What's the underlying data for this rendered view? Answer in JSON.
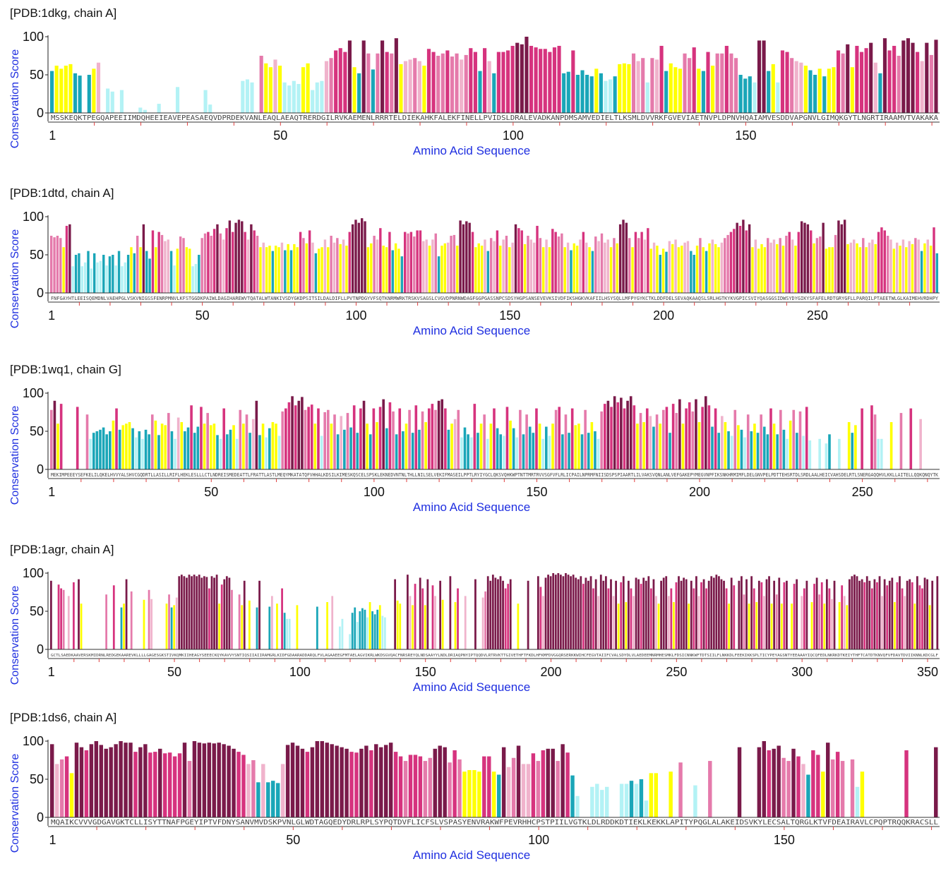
{
  "colors": {
    "maroon": "#7a1a4a",
    "magenta": "#d6337e",
    "pink": "#e57aab",
    "lightpink": "#f0b3cc",
    "yellow": "#ffff00",
    "teal": "#1aa6b8",
    "lightcyan": "#b3f2f5",
    "axis_label": "#1f2fe0"
  },
  "chart_data": [
    {
      "type": "bar",
      "title": "[PDB:1dkg, chain A]",
      "xlabel": "Amino Acid Sequence",
      "ylabel": "Conservation Score",
      "ylim": [
        0,
        100
      ],
      "yticks": [
        0,
        50,
        100
      ],
      "xticks": [
        1,
        50,
        100,
        150
      ],
      "sequence": "MSSKEQKTPEGQAPEEIIMDQHEEIEAVEPEASAEQVDPRDEKVANLEAQLAEAQTRERDGILRVKAEMENLRRRTELDIEKAHKFALEKFINELLPVIDSLDRALEVADKANPDMSAMVEDIELTLKSMLDVVRKFGVEVIAETNVPLDPNVHQAIAMVESDDVAPGNVLGIMQKGYTLNGRTIRAAMVTVAKAKA",
      "scores": [
        55,
        62,
        58,
        62,
        64,
        52,
        49,
        0,
        50,
        58,
        66,
        0,
        32,
        28,
        0,
        30,
        0,
        0,
        0,
        7,
        4,
        0,
        0,
        12,
        0,
        0,
        0,
        34,
        0,
        0,
        0,
        0,
        0,
        30,
        11,
        0,
        0,
        0,
        0,
        0,
        0,
        42,
        44,
        40,
        0,
        75,
        65,
        60,
        70,
        62,
        40,
        36,
        42,
        38,
        60,
        65,
        30,
        40,
        42,
        68,
        72,
        82,
        85,
        80,
        95,
        60,
        52,
        95,
        78,
        57,
        78,
        95,
        80,
        78,
        98,
        64,
        68,
        70,
        72,
        68,
        62,
        84,
        80,
        75,
        78,
        82,
        74,
        78,
        70,
        76,
        85,
        80,
        55,
        85,
        68,
        52,
        80,
        80,
        82,
        88,
        92,
        90,
        100,
        88,
        86,
        84,
        84,
        80,
        86,
        88,
        52,
        54,
        82,
        50,
        56,
        50,
        48,
        58,
        52,
        42,
        44,
        48,
        64,
        65,
        64,
        78,
        68,
        72,
        40,
        72,
        70,
        88,
        55,
        65,
        60,
        58,
        78,
        72,
        86,
        58,
        55,
        80,
        62,
        78,
        78,
        88,
        78,
        72,
        50,
        45,
        48,
        40,
        95,
        95,
        55,
        64,
        40,
        82,
        80,
        72,
        68,
        66,
        62,
        56,
        50,
        58,
        48,
        58,
        60,
        82,
        78,
        90,
        60,
        88,
        80,
        85,
        92,
        66,
        52,
        98,
        82,
        88,
        75,
        95,
        98,
        92,
        80,
        68,
        92,
        76,
        96
      ]
    },
    {
      "type": "bar",
      "title": "[PDB:1dtd, chain A]",
      "xlabel": "Amino Acid Sequence",
      "ylabel": "Conservation Score",
      "ylim": [
        0,
        100
      ],
      "yticks": [
        0,
        50,
        100
      ],
      "xticks": [
        1,
        50,
        100,
        150,
        200,
        250,
        300
      ],
      "sequence": "FNFGAYHTLEEISQEMDNLVAEHPGLVSKVNIGSSFENRPMNVLKFSTGGDKPAIWLDAGIHAREWVTQATALWTANKIVSDYGKDPSITSILDALDIFLLPVTNPDGYVFSQTKNRMWRKTRSKVSAGSLCVGVDPNRNWDAGFGGPGASSNPCSDSYHGPSANSEVEVKSIVDFIKSHGKVKAFIILHSYSQLLMFPYGYKCTKLDDFDELSEVAQKAAQSLSRLHGTKYKVGPICSVIYQASGGSIDWSYDYGIKYSFAFELRDTGRYGFLLPARQILPTAEETWLGLKAIMEHVRDHPY",
      "scores": [
        75,
        73,
        75,
        72,
        60,
        88,
        90,
        35,
        50,
        52,
        35,
        40,
        55,
        32,
        52,
        40,
        42,
        50,
        36,
        48,
        50,
        36,
        55,
        35,
        40,
        50,
        60,
        52,
        75,
        60,
        90,
        55,
        45,
        82,
        60,
        80,
        76,
        68,
        70,
        55,
        36,
        58,
        74,
        72,
        60,
        58,
        35,
        38,
        50,
        72,
        78,
        80,
        75,
        84,
        90,
        78,
        70,
        85,
        95,
        80,
        92,
        96,
        94,
        80,
        70,
        90,
        82,
        75,
        60,
        66,
        60,
        62,
        55,
        62,
        60,
        66,
        56,
        64,
        56,
        64,
        60,
        80,
        72,
        65,
        82,
        66,
        52,
        58,
        60,
        70,
        60,
        75,
        66,
        72,
        64,
        70,
        62,
        80,
        90,
        96,
        92,
        98,
        94,
        60,
        65,
        75,
        70,
        85,
        62,
        60,
        80,
        56,
        65,
        58,
        48,
        80,
        78,
        80,
        74,
        82,
        82,
        68,
        70,
        62,
        70,
        78,
        48,
        62,
        65,
        66,
        75,
        76,
        62,
        95,
        90,
        94,
        92,
        80,
        60,
        65,
        62,
        70,
        55,
        72,
        68,
        82,
        62,
        70,
        75,
        60,
        66,
        90,
        85,
        82,
        64,
        75,
        70,
        66,
        88,
        72,
        60,
        70,
        60,
        84,
        80,
        74,
        78,
        60,
        66,
        56,
        65,
        62,
        70,
        80,
        66,
        60,
        55,
        74,
        68,
        78,
        66,
        70,
        60,
        72,
        65,
        90,
        96,
        92,
        72,
        60,
        80,
        72,
        80,
        70,
        85,
        58,
        66,
        62,
        50,
        58,
        54,
        68,
        64,
        70,
        60,
        62,
        66,
        68,
        55,
        50,
        62,
        72,
        60,
        55,
        65,
        70,
        64,
        60,
        66,
        72,
        76,
        80,
        84,
        92,
        88,
        96,
        82,
        90,
        60,
        70,
        58,
        64,
        60,
        72,
        66,
        70,
        64,
        72,
        62,
        75,
        80,
        70,
        62,
        80,
        94,
        92,
        90,
        82,
        65,
        72,
        74,
        92,
        58,
        60,
        60,
        76,
        95,
        90,
        96,
        64,
        66,
        70,
        65,
        60,
        72,
        60,
        66,
        70,
        64,
        80,
        86,
        82,
        75,
        70,
        58,
        66,
        62,
        70,
        60,
        68,
        64,
        72,
        70,
        55,
        65,
        70,
        62,
        86,
        52
      ]
    },
    {
      "type": "bar",
      "title": "[PDB:1wq1, chain G]",
      "xlabel": "Amino Acid Sequence",
      "ylabel": "Conservation Score",
      "ylim": [
        0,
        100
      ],
      "yticks": [
        0,
        50,
        100
      ],
      "xticks": [
        1,
        50,
        100,
        150,
        200,
        250,
        300
      ],
      "sequence": "MEKIMPEEEYSEFKELILQKELHVVYALSHVCGQDRTLLASILLRIFLHEKLESLLLCTLNDREISMEDEATTLFRATTLASTLMEQYMKATATQFVHHALKDSILKIMESKQSCELSPSKLEKNEDVNTNLTHLLNILSELVEKIFMASEILPPTLRYIYGCLQKSVQHKWPTNTTMRTRVVSGFVFLRLICPAILNPRMFNIISDSPSPIAARTLILVAKSVQNLANLVEFGAKEPYMEGVNPFIKSNKHRMIMFLDELGNVPELPDTTEHSRTDLSRDLAALHEICVAHSDELRTLSNERGAQQHVLKKLLAITELLQQKQNQYTK",
      "scores": [
        78,
        90,
        60,
        86,
        0,
        0,
        0,
        0,
        82,
        0,
        0,
        72,
        40,
        48,
        50,
        52,
        55,
        46,
        50,
        64,
        80,
        52,
        58,
        60,
        62,
        54,
        42,
        50,
        40,
        52,
        46,
        72,
        64,
        45,
        60,
        58,
        74,
        50,
        40,
        68,
        62,
        50,
        55,
        84,
        48,
        56,
        82,
        60,
        74,
        58,
        60,
        45,
        40,
        80,
        46,
        52,
        58,
        40,
        78,
        60,
        72,
        48,
        66,
        90,
        45,
        60,
        42,
        54,
        62,
        60,
        44,
        76,
        80,
        88,
        96,
        84,
        90,
        95,
        78,
        82,
        85,
        60,
        80,
        44,
        75,
        78,
        60,
        72,
        46,
        70,
        52,
        74,
        55,
        84,
        48,
        80,
        90,
        60,
        46,
        80,
        62,
        82,
        92,
        54,
        88,
        76,
        46,
        80,
        50,
        60,
        78,
        48,
        84,
        52,
        76,
        62,
        80,
        86,
        78,
        90,
        92,
        80,
        52,
        60,
        66,
        78,
        42,
        55,
        46,
        42,
        86,
        48,
        60,
        72,
        40,
        60,
        80,
        54,
        46,
        44,
        82,
        64,
        54,
        42,
        78,
        46,
        72,
        56,
        48,
        80,
        60,
        40,
        56,
        44,
        60,
        78,
        82,
        46,
        72,
        48,
        80,
        58,
        60,
        46,
        78,
        48,
        62,
        50,
        40,
        76,
        86,
        90,
        82,
        96,
        88,
        94,
        80,
        90,
        96,
        84,
        60,
        74,
        62,
        80,
        70,
        56,
        72,
        60,
        78,
        82,
        48,
        86,
        74,
        92,
        60,
        80,
        88,
        76,
        92,
        62,
        82,
        96,
        84,
        56,
        80,
        48,
        70,
        62,
        50,
        44,
        78,
        58,
        52,
        42,
        72,
        50,
        60,
        48,
        72,
        56,
        46,
        80,
        60,
        46,
        78,
        52,
        40,
        64,
        78,
        48,
        76,
        44,
        82,
        38,
        0,
        0,
        40,
        0,
        34,
        46,
        0,
        0,
        40,
        0,
        0,
        62,
        48,
        58,
        0,
        80,
        0,
        0,
        84,
        72,
        40,
        40,
        0,
        0,
        62,
        0,
        0,
        74,
        0,
        0,
        80,
        0,
        0,
        66,
        0,
        0,
        0,
        0,
        0
      ]
    },
    {
      "type": "bar",
      "title": "[PDB:1agr, chain A]",
      "xlabel": "Amino Acid Sequence",
      "ylabel": "Conservation Score",
      "ylim": [
        0,
        100
      ],
      "yticks": [
        0,
        50,
        100
      ],
      "xticks": [
        1,
        50,
        100,
        150,
        200,
        250,
        300,
        350
      ],
      "sequence": "GCTLSAEDKAAVERSKMIDRNLREDGEKAAREVKLLLLGAGESGKSTIVKQMKIIHEAGYSEEECKQYKAVVYSNTIQSIIAIIRAMGRLKIDFGDAARADDARQLFVLAGAAEEGFMTAELAGVIKRLWKDSGVQACFNRSREYQLNDSAAYYLNDLDRIAQPNYIPTQQDVLRTRVKTTGIVETHFTFKDLHFKMFDVGGQRSERKKWIHCFEGVTAIIFCVALSDYDLVLAEDEEMNRMHESMKLFDSICNNKWFTDTSIILFLNKKDLFEEKIKKSPLTICYPEYAGSNTYEEAAAYIQCQFEDLNKRKDTKEIYTHFTCATDTKNVQFVFDAVTDVIIKNNLKDCGLF",
      "scores": [
        90,
        0,
        0,
        85,
        80,
        78,
        0,
        70,
        0,
        88,
        0,
        92,
        60,
        0,
        0,
        0,
        0,
        0,
        0,
        0,
        0,
        0,
        72,
        0,
        0,
        84,
        0,
        0,
        55,
        60,
        92,
        0,
        76,
        0,
        0,
        0,
        0,
        65,
        0,
        78,
        66,
        0,
        0,
        0,
        0,
        0,
        60,
        72,
        55,
        58,
        68,
        96,
        98,
        96,
        94,
        98,
        96,
        98,
        96,
        98,
        94,
        96,
        95,
        80,
        96,
        94,
        98,
        60,
        85,
        92,
        96,
        94,
        78,
        0,
        0,
        72,
        58,
        90,
        0,
        64,
        0,
        0,
        55,
        90,
        0,
        0,
        0,
        56,
        70,
        0,
        60,
        0,
        80,
        48,
        40,
        40,
        0,
        0,
        58,
        0,
        0,
        0,
        0,
        0,
        0,
        0,
        56,
        0,
        0,
        0,
        62,
        0,
        70,
        0,
        0,
        30,
        40,
        0,
        0,
        20,
        48,
        55,
        36,
        50,
        54,
        52,
        42,
        62,
        50,
        46,
        52,
        58,
        44,
        42,
        0,
        0,
        0,
        92,
        64,
        60,
        0,
        0,
        98,
        70,
        58,
        86,
        0,
        94,
        80,
        58,
        92,
        0,
        84,
        70,
        0,
        90,
        65,
        0,
        0,
        96,
        0,
        62,
        80,
        0,
        0,
        70,
        0,
        0,
        0,
        92,
        0,
        0,
        68,
        76,
        96,
        90,
        98,
        94,
        92,
        96,
        90,
        80,
        86,
        92,
        0,
        0,
        60,
        0,
        0,
        0,
        90,
        0,
        0,
        0,
        96,
        82,
        70,
        94,
        98,
        96,
        100,
        98,
        100,
        98,
        96,
        100,
        98,
        96,
        98,
        94,
        92,
        96,
        86,
        94,
        90,
        96,
        80,
        92,
        70,
        98,
        90,
        96,
        80,
        92,
        70,
        90,
        60,
        88,
        96,
        62,
        90,
        80,
        70,
        94,
        92,
        86,
        94,
        90,
        96,
        80,
        92,
        70,
        60,
        90,
        94,
        96,
        70,
        80,
        62,
        88,
        96,
        90,
        94,
        92,
        60,
        90,
        80,
        96,
        70,
        88,
        92,
        80,
        90,
        96,
        94,
        98,
        96,
        92,
        90,
        80,
        60,
        94,
        84,
        0,
        90,
        96,
        72,
        92,
        60,
        96,
        80,
        62,
        90,
        88,
        70,
        92,
        96,
        60,
        90,
        72,
        94,
        60,
        88,
        90,
        0,
        60,
        86,
        92,
        0,
        70,
        80,
        90,
        0,
        62,
        86,
        94,
        72,
        88,
        60,
        92,
        80,
        66,
        90,
        0,
        62,
        84,
        70,
        58,
        92,
        96,
        98,
        96,
        90,
        92,
        88,
        96,
        90,
        80,
        92,
        88,
        96,
        70,
        92,
        84,
        90,
        94,
        62,
        88,
        96,
        80,
        70,
        90,
        92,
        88,
        60,
        96,
        84,
        80,
        94,
        92,
        58,
        90,
        0,
        96
      ]
    },
    {
      "type": "bar",
      "title": "[PDB:1ds6, chain A]",
      "xlabel": "Amino Acid Sequence",
      "ylabel": "Conservation Score",
      "ylim": [
        0,
        100
      ],
      "yticks": [
        0,
        50,
        100
      ],
      "xticks": [
        1,
        50,
        100,
        150
      ],
      "sequence": "MQAIKCVVVGDGAVGKTCLLISYTTNAFPGEYIPTVFDNYSANVMVDSKPVNLGLWDTAGQEDYDRLRPLSYPQTDVFLICFSLVSPASYENVRAKWFPEVRHHCPSTPIILVGTKLDLRDDKDTIEKLKEKKLAPITYPQGLALAKEIDSVKYLECSALTQRGLKTVFDEAIRAVLCPQPTRQQKRACSLL",
      "scores": [
        96,
        70,
        76,
        80,
        58,
        98,
        92,
        88,
        96,
        100,
        95,
        90,
        92,
        96,
        100,
        98,
        98,
        86,
        92,
        96,
        85,
        86,
        90,
        84,
        85,
        80,
        84,
        98,
        74,
        100,
        98,
        97,
        98,
        97,
        98,
        96,
        94,
        90,
        86,
        82,
        70,
        75,
        46,
        70,
        46,
        48,
        45,
        70,
        95,
        98,
        94,
        90,
        86,
        92,
        100,
        100,
        98,
        96,
        94,
        92,
        90,
        86,
        85,
        90,
        94,
        88,
        96,
        92,
        95,
        98,
        86,
        80,
        74,
        82,
        82,
        80,
        74,
        78,
        90,
        94,
        92,
        72,
        88,
        76,
        60,
        62,
        62,
        60,
        80,
        80,
        60,
        56,
        92,
        66,
        78,
        94,
        70,
        70,
        84,
        74,
        88,
        90,
        90,
        74,
        96,
        85,
        55,
        28,
        0,
        0,
        40,
        44,
        36,
        40,
        0,
        0,
        44,
        44,
        48,
        44,
        50,
        22,
        58,
        58,
        0,
        0,
        60,
        0,
        72,
        0,
        0,
        42,
        0,
        0,
        74,
        0,
        0,
        0,
        0,
        0,
        92,
        0,
        0,
        0,
        92,
        100,
        88,
        90,
        94,
        78,
        74,
        90,
        80,
        70,
        56,
        88,
        82,
        60,
        98,
        76,
        86,
        74,
        0,
        76,
        40,
        60,
        0,
        0,
        0,
        0,
        0,
        0,
        0,
        0,
        88,
        0,
        0,
        0,
        0,
        0,
        92
      ]
    }
  ]
}
